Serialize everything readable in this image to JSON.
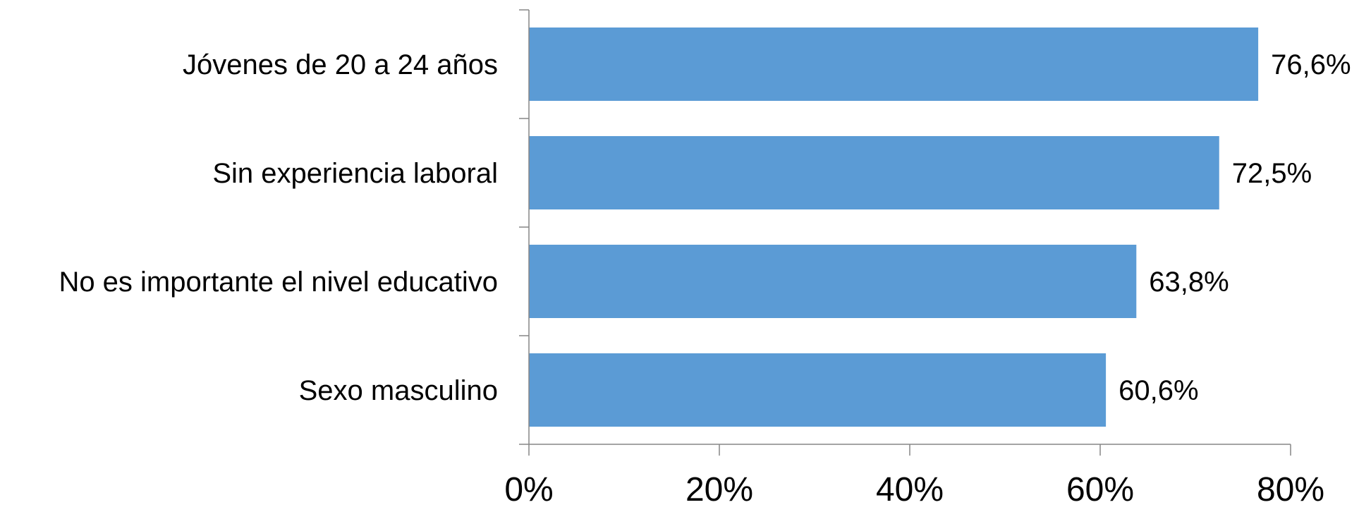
{
  "chart_data": {
    "type": "bar",
    "orientation": "horizontal",
    "categories": [
      "Jóvenes de 20 a 24 años",
      "Sin experiencia laboral",
      "No es importante el nivel educativo",
      "Sexo masculino"
    ],
    "values": [
      76.6,
      72.5,
      63.8,
      60.6
    ],
    "data_labels": [
      "76,6%",
      "72,5%",
      "63,8%",
      "60,6%"
    ],
    "xlim": [
      0,
      80
    ],
    "x_ticks": [
      0,
      20,
      40,
      60,
      80
    ],
    "x_tick_labels": [
      "0%",
      "20%",
      "40%",
      "60%",
      "80%"
    ],
    "title": "",
    "xlabel": "",
    "ylabel": "",
    "grid": false,
    "legend": "none",
    "bar_color": "#5B9BD5",
    "axis_color": "#868686"
  }
}
